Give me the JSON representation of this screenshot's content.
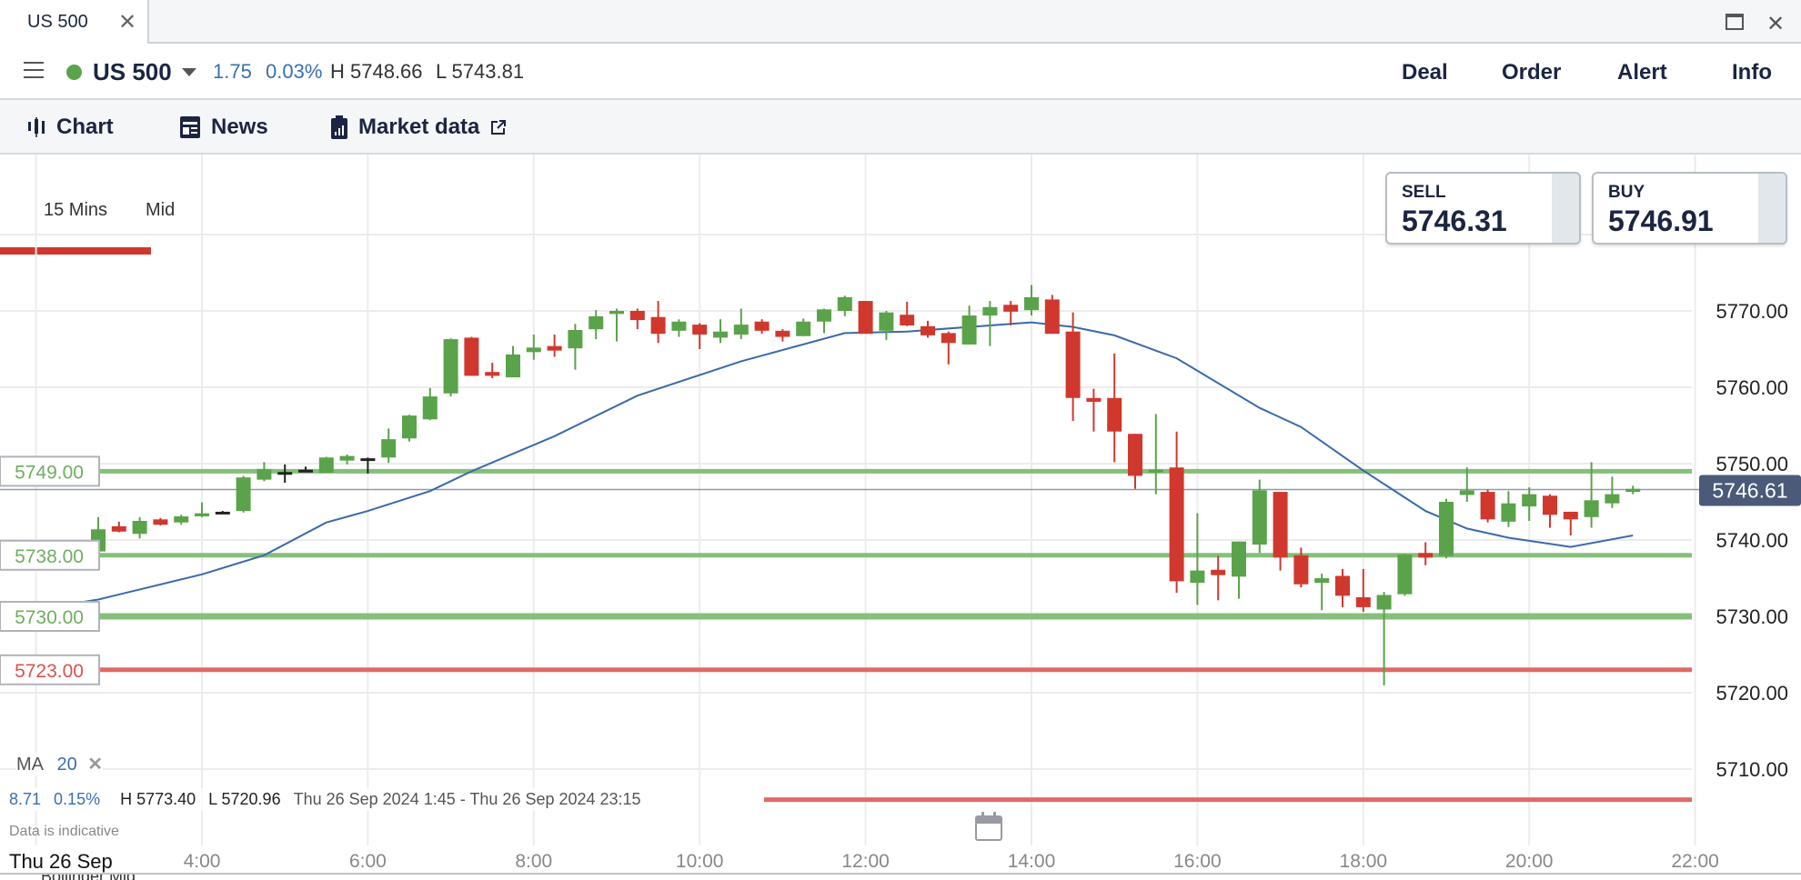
{
  "window": {
    "tab_title": "US 500",
    "close_icon": "x-icon",
    "maximize_icon": "maximize-icon"
  },
  "header": {
    "symbol": "US 500",
    "status_color": "#5aa34a",
    "change": "1.75",
    "change_pct": "0.03%",
    "high": "H 5748.66",
    "low": "L 5743.81",
    "actions": [
      "Deal",
      "Order",
      "Alert",
      "Info"
    ]
  },
  "tabs": [
    {
      "label": "Chart",
      "icon": "candlestick-icon",
      "active": true
    },
    {
      "label": "News",
      "icon": "newspaper-icon"
    },
    {
      "label": "Market data",
      "icon": "clipboard-chart-icon",
      "external_icon": "external-link-icon"
    }
  ],
  "controls": {
    "interval": "15 Mins",
    "price_type": "Mid"
  },
  "trade": {
    "sell_label": "SELL",
    "sell_price": "5746.31",
    "buy_label": "BUY",
    "buy_price": "5746.91"
  },
  "indicator": {
    "name": "MA",
    "period": "20",
    "remove": "✕"
  },
  "info": {
    "change": "8.71",
    "change_pct": "0.15%",
    "high": "H 5773.40",
    "low": "L 5720.96",
    "range": "Thu 26 Sep 2024 1:45 - Thu 26 Sep 2024 23:15",
    "disclaimer": "Data is indicative"
  },
  "date_label": "Thu 26 Sep",
  "bottom_panel_label": "Bollinger Mid",
  "chart_data": {
    "type": "candlestick",
    "interval": "15 Mins",
    "colors": {
      "up": "#5aa34a",
      "down": "#d0382e",
      "doji": "#222222",
      "ma": "#3a6aa8"
    },
    "ylim": [
      5705,
      5782
    ],
    "yticks": [
      "5710.00",
      "5720.00",
      "5730.00",
      "5740.00",
      "5750.00",
      "5760.00",
      "5770.00"
    ],
    "xticks": [
      "4:00",
      "6:00",
      "8:00",
      "10:00",
      "12:00",
      "14:00",
      "16:00",
      "18:00",
      "20:00",
      "22:00"
    ],
    "grid": true,
    "current_price": {
      "value": "5746.61",
      "color": "#4a5a78"
    },
    "levels": [
      {
        "label": "5749.00",
        "value": 5749,
        "color": "#85bf7a"
      },
      {
        "label": "5738.00",
        "value": 5738,
        "color": "#85bf7a"
      },
      {
        "label": "5730.00",
        "value": 5730,
        "color": "#85bf7a"
      },
      {
        "label": "5723.00",
        "value": 5723,
        "color": "#e06a66"
      },
      {
        "label": "",
        "value": 5706,
        "color": "#e06a66"
      }
    ],
    "candles_columns": [
      "time",
      "open",
      "high",
      "low",
      "close"
    ],
    "candles": [
      [
        "02:45",
        5738.5,
        5743.0,
        5738.0,
        5741.4
      ],
      [
        "03:00",
        5741.8,
        5742.4,
        5741.0,
        5741.1
      ],
      [
        "03:15",
        5740.8,
        5743.0,
        5740.2,
        5742.5
      ],
      [
        "03:30",
        5742.7,
        5742.9,
        5741.9,
        5742.0
      ],
      [
        "03:45",
        5742.3,
        5743.3,
        5742.0,
        5743.1
      ],
      [
        "04:00",
        5743.1,
        5744.9,
        5743.0,
        5743.5
      ],
      [
        "04:15",
        5743.7,
        5743.8,
        5743.5,
        5743.7
      ],
      [
        "04:30",
        5743.8,
        5748.4,
        5743.6,
        5748.2
      ],
      [
        "04:45",
        5747.9,
        5750.2,
        5747.7,
        5749.3
      ],
      [
        "05:00",
        5748.9,
        5749.9,
        5747.5,
        5748.9
      ],
      [
        "05:15",
        5749.2,
        5749.6,
        5749.0,
        5749.2
      ],
      [
        "05:30",
        5748.8,
        5750.9,
        5748.8,
        5750.8
      ],
      [
        "05:45",
        5750.4,
        5751.2,
        5749.9,
        5751.0
      ],
      [
        "06:00",
        5750.7,
        5750.8,
        5748.7,
        5750.7
      ],
      [
        "06:15",
        5750.8,
        5754.6,
        5750.1,
        5753.2
      ],
      [
        "06:30",
        5753.3,
        5756.4,
        5752.9,
        5756.3
      ],
      [
        "06:45",
        5755.8,
        5759.9,
        5755.7,
        5758.8
      ],
      [
        "07:00",
        5759.2,
        5766.4,
        5758.8,
        5766.3
      ],
      [
        "07:15",
        5766.5,
        5766.6,
        5761.5,
        5761.5
      ],
      [
        "07:30",
        5762.0,
        5763.2,
        5761.2,
        5761.5
      ],
      [
        "07:45",
        5761.3,
        5765.4,
        5761.3,
        5764.3
      ],
      [
        "08:00",
        5764.6,
        5766.9,
        5763.6,
        5765.2
      ],
      [
        "08:15",
        5765.4,
        5766.9,
        5764.0,
        5764.8
      ],
      [
        "08:30",
        5765.1,
        5768.3,
        5762.3,
        5767.5
      ],
      [
        "08:45",
        5767.6,
        5770.1,
        5766.3,
        5769.3
      ],
      [
        "09:00",
        5769.6,
        5770.3,
        5766.0,
        5770.0
      ],
      [
        "09:15",
        5770.0,
        5770.3,
        5767.6,
        5768.8
      ],
      [
        "09:30",
        5769.2,
        5771.3,
        5765.8,
        5767.0
      ],
      [
        "09:45",
        5767.4,
        5768.9,
        5766.6,
        5768.6
      ],
      [
        "10:00",
        5768.2,
        5768.4,
        5765.0,
        5766.9
      ],
      [
        "10:15",
        5766.5,
        5768.9,
        5765.8,
        5767.3
      ],
      [
        "10:30",
        5766.9,
        5770.3,
        5766.3,
        5768.2
      ],
      [
        "10:45",
        5768.6,
        5768.9,
        5767.0,
        5767.4
      ],
      [
        "11:00",
        5767.4,
        5767.6,
        5766.0,
        5766.6
      ],
      [
        "11:15",
        5766.7,
        5769.0,
        5766.7,
        5768.6
      ],
      [
        "11:30",
        5768.6,
        5770.3,
        5767.1,
        5770.2
      ],
      [
        "11:45",
        5770.0,
        5772.0,
        5769.3,
        5771.8
      ],
      [
        "12:00",
        5771.3,
        5771.3,
        5767.0,
        5767.0
      ],
      [
        "12:15",
        5767.4,
        5770.0,
        5766.2,
        5769.8
      ],
      [
        "12:30",
        5769.5,
        5771.2,
        5768.0,
        5768.1
      ],
      [
        "12:45",
        5768.0,
        5768.7,
        5766.5,
        5766.8
      ],
      [
        "13:00",
        5767.1,
        5767.3,
        5763.0,
        5765.8
      ],
      [
        "13:15",
        5765.6,
        5770.7,
        5765.6,
        5769.4
      ],
      [
        "13:30",
        5769.4,
        5771.3,
        5765.4,
        5770.5
      ],
      [
        "13:45",
        5770.8,
        5771.3,
        5768.1,
        5769.9
      ],
      [
        "14:00",
        5770.1,
        5773.4,
        5769.4,
        5771.8
      ],
      [
        "14:15",
        5771.5,
        5772.1,
        5767.0,
        5767.0
      ],
      [
        "14:30",
        5767.3,
        5769.8,
        5755.6,
        5758.6
      ],
      [
        "14:45",
        5758.6,
        5759.8,
        5754.2,
        5758.1
      ],
      [
        "15:00",
        5758.6,
        5764.4,
        5750.2,
        5754.2
      ],
      [
        "15:15",
        5753.9,
        5753.9,
        5746.7,
        5748.4
      ],
      [
        "15:30",
        5749.0,
        5756.5,
        5746.0,
        5749.2
      ],
      [
        "15:45",
        5749.5,
        5754.2,
        5733.1,
        5734.6
      ],
      [
        "16:00",
        5734.4,
        5743.5,
        5731.5,
        5736.0
      ],
      [
        "16:15",
        5736.1,
        5737.9,
        5732.1,
        5735.4
      ],
      [
        "16:30",
        5735.2,
        5739.8,
        5732.3,
        5739.8
      ],
      [
        "16:45",
        5739.4,
        5747.9,
        5738.3,
        5746.5
      ],
      [
        "17:00",
        5746.3,
        5746.3,
        5736.0,
        5737.7
      ],
      [
        "17:15",
        5738.0,
        5739.0,
        5733.8,
        5734.2
      ],
      [
        "17:30",
        5734.4,
        5735.6,
        5730.8,
        5735.0
      ],
      [
        "17:45",
        5735.3,
        5736.2,
        5731.2,
        5732.7
      ],
      [
        "18:00",
        5732.5,
        5736.2,
        5730.6,
        5731.2
      ],
      [
        "18:15",
        5730.9,
        5733.2,
        5720.96,
        5732.8
      ],
      [
        "18:30",
        5732.9,
        5738.2,
        5732.7,
        5738.1
      ],
      [
        "18:45",
        5738.3,
        5739.7,
        5736.7,
        5737.7
      ],
      [
        "19:00",
        5737.9,
        5745.4,
        5737.6,
        5745.0
      ],
      [
        "19:15",
        5745.9,
        5749.5,
        5745.0,
        5746.5
      ],
      [
        "19:30",
        5746.3,
        5746.6,
        5742.3,
        5742.7
      ],
      [
        "19:45",
        5742.4,
        5746.4,
        5741.7,
        5744.8
      ],
      [
        "20:00",
        5744.4,
        5746.9,
        5742.5,
        5746.0
      ],
      [
        "20:15",
        5745.8,
        5746.0,
        5741.6,
        5743.3
      ],
      [
        "20:30",
        5743.7,
        5743.7,
        5740.6,
        5742.7
      ],
      [
        "20:45",
        5743.0,
        5750.2,
        5741.6,
        5745.2
      ],
      [
        "21:00",
        5744.8,
        5748.3,
        5744.2,
        5746.0
      ],
      [
        "21:15",
        5746.3,
        5747.1,
        5746.0,
        5746.7
      ]
    ],
    "ma_series": {
      "name": "MA 20",
      "points": [
        [
          "01:45",
          5730.5
        ],
        [
          "02:45",
          5732.2
        ],
        [
          "04:00",
          5735.5
        ],
        [
          "04:45",
          5738.0
        ],
        [
          "05:30",
          5742.3
        ],
        [
          "06:00",
          5743.8
        ],
        [
          "06:45",
          5746.4
        ],
        [
          "07:15",
          5749.0
        ],
        [
          "08:15",
          5753.6
        ],
        [
          "09:15",
          5758.9
        ],
        [
          "10:30",
          5763.4
        ],
        [
          "11:45",
          5767.1
        ],
        [
          "12:30",
          5767.3
        ],
        [
          "14:00",
          5768.5
        ],
        [
          "14:30",
          5767.9
        ],
        [
          "15:00",
          5766.8
        ],
        [
          "15:45",
          5763.8
        ],
        [
          "16:45",
          5757.3
        ],
        [
          "17:15",
          5754.8
        ],
        [
          "18:00",
          5749.1
        ],
        [
          "18:45",
          5743.8
        ],
        [
          "19:15",
          5741.5
        ],
        [
          "19:45",
          5740.3
        ],
        [
          "20:30",
          5739.1
        ],
        [
          "21:15",
          5740.6
        ]
      ]
    }
  }
}
